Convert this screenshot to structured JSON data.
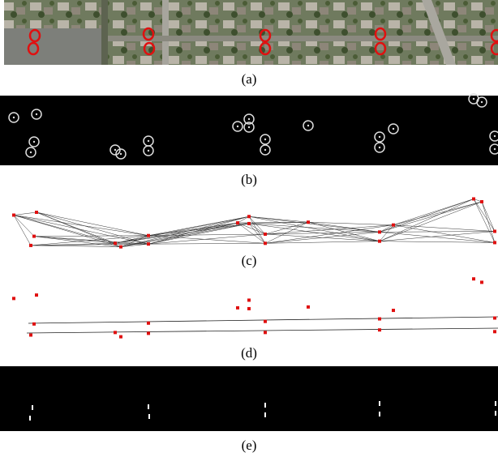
{
  "figure": {
    "panels": [
      {
        "caption": "(a)"
      },
      {
        "caption": "(b)"
      },
      {
        "caption": "(c)"
      },
      {
        "caption": "(d)"
      },
      {
        "caption": "(e)"
      }
    ]
  }
}
